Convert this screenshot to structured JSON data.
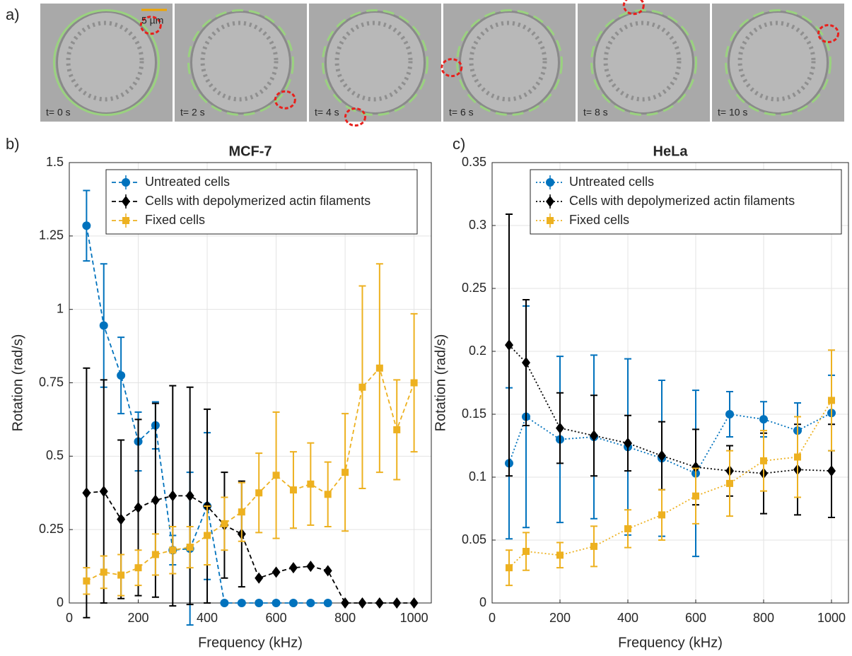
{
  "panel_a": {
    "label": "a)",
    "scale_bar": "5 µm",
    "frames": [
      "t= 0 s",
      "t= 2 s",
      "t= 4 s",
      "t= 6 s",
      "t= 8 s",
      "t= 10 s"
    ]
  },
  "chart_data": [
    {
      "type": "line",
      "panel_label": "b)",
      "title": "MCF-7",
      "x_label": "Frequency (kHz)",
      "y_label": "Rotation (rad/s)",
      "xlim": [
        0,
        1050
      ],
      "xticks": [
        0,
        200,
        400,
        600,
        800,
        1000
      ],
      "ylim": [
        0,
        1.5
      ],
      "yticks": [
        0,
        0.25,
        0.5,
        0.75,
        1,
        1.25,
        1.5
      ],
      "grid": true,
      "legend": "upper left",
      "line_style": "dashed",
      "x": [
        50,
        100,
        150,
        200,
        250,
        300,
        350,
        400,
        450,
        500,
        550,
        600,
        650,
        700,
        750,
        800,
        850,
        900,
        950,
        1000
      ],
      "series": [
        {
          "name": "Untreated cells",
          "color": "#0072bd",
          "marker": "circle",
          "values": [
            1.285,
            0.945,
            0.775,
            0.55,
            0.605,
            0.18,
            0.185,
            0.33,
            0,
            0,
            0,
            0,
            0,
            0,
            0,
            null,
            null,
            null,
            null,
            null
          ],
          "errors": [
            0.12,
            0.21,
            0.13,
            0.1,
            0.08,
            0.05,
            0.26,
            0.25,
            0,
            0,
            0,
            0,
            0,
            0,
            0,
            null,
            null,
            null,
            null,
            null
          ]
        },
        {
          "name": "Cells with depolymerized actin filaments",
          "color": "#000000",
          "marker": "diamond",
          "values": [
            0.375,
            0.38,
            0.285,
            0.325,
            0.35,
            0.365,
            0.365,
            0.33,
            0.265,
            0.235,
            0.085,
            0.105,
            0.12,
            0.125,
            0.11,
            0,
            0,
            0,
            0,
            0
          ],
          "errors": [
            0.425,
            0.38,
            0.27,
            0.3,
            0.33,
            0.375,
            0.37,
            0.33,
            0.18,
            0.18,
            0,
            0,
            0,
            0,
            0,
            0,
            0,
            0,
            0,
            0
          ]
        },
        {
          "name": "Fixed cells",
          "color": "#edb120",
          "marker": "square",
          "values": [
            0.075,
            0.105,
            0.095,
            0.12,
            0.165,
            0.18,
            0.19,
            0.23,
            0.27,
            0.31,
            0.375,
            0.435,
            0.385,
            0.405,
            0.37,
            0.445,
            0.735,
            0.8,
            0.59,
            0.75
          ],
          "errors": [
            0.045,
            0.055,
            0.07,
            0.06,
            0.07,
            0.08,
            0.07,
            0.1,
            0.09,
            0.1,
            0.135,
            0.215,
            0.13,
            0.14,
            0.11,
            0.2,
            0.345,
            0.355,
            0.17,
            0.235
          ]
        }
      ]
    },
    {
      "type": "line",
      "panel_label": "c)",
      "title": "HeLa",
      "x_label": "Frequency (kHz)",
      "y_label": "Rotation (rad/s)",
      "xlim": [
        0,
        1050
      ],
      "xticks": [
        0,
        200,
        400,
        600,
        800,
        1000
      ],
      "ylim": [
        0,
        0.35
      ],
      "yticks": [
        0,
        0.05,
        0.1,
        0.15,
        0.2,
        0.25,
        0.3,
        0.35
      ],
      "grid": true,
      "legend": "upper left",
      "line_style": "dotted",
      "x": [
        50,
        100,
        200,
        300,
        400,
        500,
        600,
        700,
        800,
        900,
        1000
      ],
      "series": [
        {
          "name": "Untreated cells",
          "color": "#0072bd",
          "marker": "circle",
          "values": [
            0.111,
            0.148,
            0.13,
            0.132,
            0.124,
            0.115,
            0.103,
            0.15,
            0.146,
            0.137,
            0.151
          ],
          "errors": [
            0.06,
            0.088,
            0.066,
            0.065,
            0.07,
            0.062,
            0.066,
            0.018,
            0.014,
            0.022,
            0.03
          ]
        },
        {
          "name": "Cells with depolymerized actin filaments",
          "color": "#000000",
          "marker": "diamond",
          "values": [
            0.205,
            0.191,
            0.139,
            0.133,
            0.127,
            0.117,
            0.108,
            0.105,
            0.103,
            0.106,
            0.105
          ],
          "errors": [
            0.104,
            0.05,
            0.028,
            0.032,
            0.022,
            0.027,
            0.03,
            0.02,
            0.032,
            0.036,
            0.037
          ]
        },
        {
          "name": "Fixed cells",
          "color": "#edb120",
          "marker": "square",
          "values": [
            0.028,
            0.041,
            0.038,
            0.045,
            0.059,
            0.07,
            0.085,
            0.095,
            0.113,
            0.116,
            0.161
          ],
          "errors": [
            0.014,
            0.015,
            0.01,
            0.016,
            0.015,
            0.02,
            0.022,
            0.026,
            0.024,
            0.032,
            0.04
          ]
        }
      ]
    }
  ]
}
